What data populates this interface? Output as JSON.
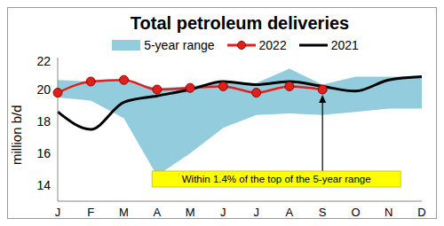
{
  "chart_data": {
    "type": "line",
    "title": "Total petroleum deliveries",
    "y_label": "million b/d",
    "categories": [
      "J",
      "F",
      "M",
      "A",
      "M",
      "J",
      "J",
      "A",
      "S",
      "O",
      "N",
      "D"
    ],
    "series": [
      {
        "name": "5-year range",
        "type": "area",
        "color": "#93cddd",
        "values": [
          [
            19.5,
            20.6
          ],
          [
            19.3,
            20.5
          ],
          [
            18.2,
            20.6
          ],
          [
            14.6,
            20.1
          ],
          [
            16.0,
            20.2
          ],
          [
            17.6,
            20.5
          ],
          [
            18.4,
            20.4
          ],
          [
            18.5,
            21.3
          ],
          [
            18.4,
            20.3
          ],
          [
            18.6,
            20.8
          ],
          [
            18.8,
            20.8
          ],
          [
            18.8,
            20.8
          ]
        ]
      },
      {
        "name": "2022",
        "type": "line",
        "color": "#e0201b",
        "marker": "circle",
        "values": [
          19.8,
          20.5,
          20.6,
          20.0,
          20.1,
          20.2,
          19.8,
          20.2,
          20.0,
          null,
          null,
          null
        ]
      },
      {
        "name": "2021",
        "type": "line",
        "color": "#000000",
        "values": [
          18.6,
          17.5,
          19.2,
          19.6,
          20.0,
          20.5,
          20.3,
          20.5,
          20.2,
          19.9,
          20.6,
          20.8
        ]
      }
    ],
    "ylim": [
      13,
      22
    ],
    "yticks": [
      14,
      16,
      18,
      20,
      22
    ],
    "annotation": "Within 1.4% of the top of the 5-year range"
  }
}
